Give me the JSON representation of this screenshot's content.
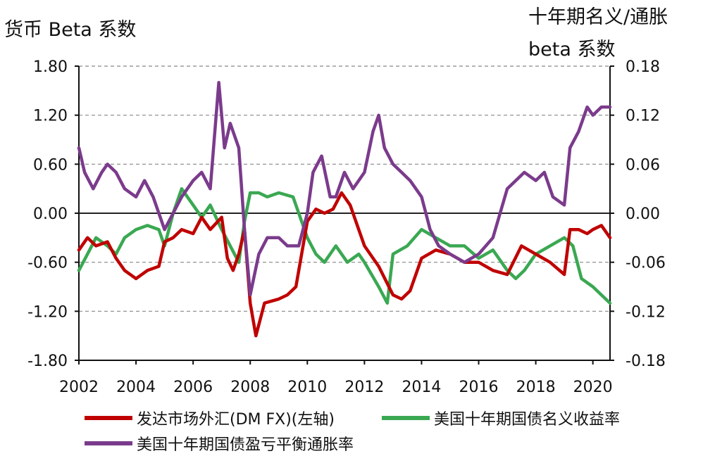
{
  "chart_data": {
    "type": "line",
    "ylabel_left": "货币 Beta 系数",
    "ylabel_right": "十年期名义/通胀 beta 系数",
    "x_ticks": [
      "2002",
      "2004",
      "2006",
      "2008",
      "2010",
      "2012",
      "2014",
      "2016",
      "2018",
      "2020"
    ],
    "xlim": [
      2002,
      2020.6
    ],
    "ylim_left": [
      -1.8,
      1.8
    ],
    "ylim_right": [
      -0.18,
      0.18
    ],
    "y_ticks_left": [
      "1.80",
      "1.20",
      "0.60",
      "0.00",
      "-0.60",
      "-1.20",
      "-1.80"
    ],
    "y_ticks_right": [
      "0.18",
      "0.12",
      "0.06",
      "0.00",
      "-0.06",
      "-0.12",
      "-0.18"
    ],
    "grid": "horizontal dashed",
    "legend_position": "bottom",
    "series": [
      {
        "name": "发达市场外汇(DM FX)(左轴)",
        "axis": "left",
        "color": "#c00000",
        "x": [
          2002.0,
          2002.3,
          2002.6,
          2003.0,
          2003.3,
          2003.6,
          2004.0,
          2004.4,
          2004.8,
          2005.0,
          2005.3,
          2005.6,
          2006.0,
          2006.3,
          2006.6,
          2007.0,
          2007.2,
          2007.4,
          2007.6,
          2007.8,
          2008.0,
          2008.2,
          2008.5,
          2009.0,
          2009.3,
          2009.6,
          2010.0,
          2010.3,
          2010.6,
          2010.9,
          2011.2,
          2011.5,
          2012.0,
          2012.5,
          2013.0,
          2013.3,
          2013.6,
          2014.0,
          2014.5,
          2015.0,
          2015.5,
          2016.0,
          2016.5,
          2017.0,
          2017.5,
          2018.0,
          2018.5,
          2019.0,
          2019.2,
          2019.5,
          2019.8,
          2020.0,
          2020.3,
          2020.6
        ],
        "values": [
          -0.45,
          -0.3,
          -0.4,
          -0.35,
          -0.55,
          -0.7,
          -0.8,
          -0.7,
          -0.65,
          -0.35,
          -0.3,
          -0.2,
          -0.25,
          -0.05,
          -0.2,
          -0.05,
          -0.55,
          -0.7,
          -0.5,
          -0.2,
          -1.1,
          -1.5,
          -1.1,
          -1.05,
          -1.0,
          -0.9,
          -0.1,
          0.05,
          0.0,
          0.05,
          0.25,
          0.1,
          -0.4,
          -0.65,
          -1.0,
          -1.05,
          -0.95,
          -0.55,
          -0.45,
          -0.5,
          -0.6,
          -0.6,
          -0.7,
          -0.75,
          -0.4,
          -0.5,
          -0.6,
          -0.75,
          -0.2,
          -0.2,
          -0.25,
          -0.2,
          -0.15,
          -0.3
        ]
      },
      {
        "name": "美国十年期国债名义收益率",
        "axis": "right",
        "color": "#3aa852",
        "x": [
          2002.0,
          2002.3,
          2002.6,
          2003.0,
          2003.3,
          2003.6,
          2004.0,
          2004.4,
          2004.8,
          2005.0,
          2005.3,
          2005.6,
          2006.0,
          2006.3,
          2006.6,
          2007.0,
          2007.3,
          2007.6,
          2007.8,
          2008.0,
          2008.3,
          2008.6,
          2009.0,
          2009.5,
          2010.0,
          2010.3,
          2010.6,
          2011.0,
          2011.4,
          2011.8,
          2012.0,
          2012.5,
          2012.8,
          2013.0,
          2013.5,
          2014.0,
          2014.5,
          2015.0,
          2015.5,
          2016.0,
          2016.5,
          2017.0,
          2017.3,
          2017.6,
          2018.0,
          2018.5,
          2019.0,
          2019.3,
          2019.6,
          2020.0,
          2020.3,
          2020.6
        ],
        "values": [
          -0.07,
          -0.05,
          -0.03,
          -0.04,
          -0.05,
          -0.03,
          -0.02,
          -0.015,
          -0.02,
          -0.04,
          0.0,
          0.03,
          0.01,
          -0.005,
          0.01,
          -0.02,
          -0.04,
          -0.06,
          -0.01,
          0.025,
          0.025,
          0.02,
          0.025,
          0.02,
          -0.03,
          -0.05,
          -0.06,
          -0.04,
          -0.06,
          -0.05,
          -0.06,
          -0.09,
          -0.11,
          -0.05,
          -0.04,
          -0.02,
          -0.03,
          -0.04,
          -0.04,
          -0.055,
          -0.045,
          -0.07,
          -0.08,
          -0.07,
          -0.05,
          -0.04,
          -0.03,
          -0.04,
          -0.08,
          -0.09,
          -0.1,
          -0.11
        ]
      },
      {
        "name": "美国十年期国债盈亏平衡通胀率",
        "axis": "right",
        "color": "#7b3b8c",
        "x": [
          2002.0,
          2002.2,
          2002.5,
          2002.8,
          2003.0,
          2003.3,
          2003.6,
          2004.0,
          2004.3,
          2004.6,
          2005.0,
          2005.3,
          2005.6,
          2006.0,
          2006.3,
          2006.6,
          2006.9,
          2007.1,
          2007.3,
          2007.6,
          2007.8,
          2008.0,
          2008.3,
          2008.6,
          2009.0,
          2009.3,
          2009.7,
          2010.0,
          2010.2,
          2010.5,
          2010.8,
          2011.0,
          2011.3,
          2011.6,
          2012.0,
          2012.3,
          2012.5,
          2012.7,
          2013.0,
          2013.3,
          2013.6,
          2014.0,
          2014.3,
          2014.6,
          2015.0,
          2015.5,
          2016.0,
          2016.5,
          2017.0,
          2017.3,
          2017.6,
          2018.0,
          2018.3,
          2018.6,
          2019.0,
          2019.2,
          2019.5,
          2019.8,
          2020.0,
          2020.3,
          2020.6
        ],
        "values": [
          0.08,
          0.05,
          0.03,
          0.05,
          0.06,
          0.05,
          0.03,
          0.02,
          0.04,
          0.02,
          -0.02,
          0.0,
          0.02,
          0.04,
          0.05,
          0.03,
          0.16,
          0.08,
          0.11,
          0.08,
          -0.02,
          -0.1,
          -0.05,
          -0.03,
          -0.03,
          -0.04,
          -0.04,
          0.0,
          0.05,
          0.07,
          0.02,
          0.02,
          0.05,
          0.03,
          0.05,
          0.1,
          0.12,
          0.08,
          0.06,
          0.05,
          0.04,
          0.02,
          -0.02,
          -0.04,
          -0.05,
          -0.06,
          -0.05,
          -0.03,
          0.03,
          0.04,
          0.05,
          0.04,
          0.05,
          0.02,
          0.01,
          0.08,
          0.1,
          0.13,
          0.12,
          0.13,
          0.13
        ]
      }
    ]
  }
}
